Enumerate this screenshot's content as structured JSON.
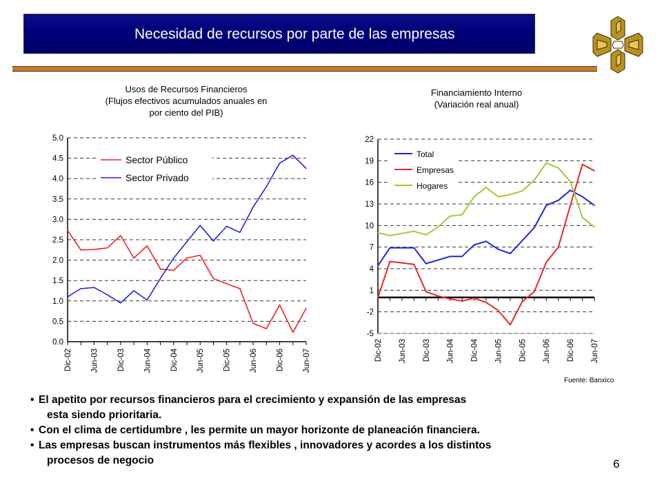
{
  "slide": {
    "title": "Necesidad de recursos  por parte de las empresas",
    "page_number": "6",
    "source": "Fuente: Banxico",
    "colors": {
      "title_bg": "#00007a",
      "accent_bar": "#cc7a29",
      "logo": "#b8911e"
    },
    "bullets": [
      {
        "line1": "El apetito por recursos financieros para el crecimiento y expansión de las empresas",
        "line2": "esta siendo  prioritaria."
      },
      {
        "line1": "Con el clima de certidumbre , les permite un mayor horizonte de planeación financiera.",
        "line2": ""
      },
      {
        "line1": "Las empresas buscan instrumentos más flexibles , innovadores y acordes a los distintos",
        "line2": "procesos de negocio"
      }
    ]
  },
  "chart_data": [
    {
      "type": "line",
      "title_lines": [
        "Usos de Recursos Financieros",
        "(Flujos efectivos acumulados anuales en",
        "por ciento del PIB)"
      ],
      "x_tick_labels": [
        "Dic-02",
        "Jun-03",
        "Dic-03",
        "Jun-04",
        "Dic-04",
        "Jun-05",
        "Dic-05",
        "Jun-06",
        "Dic-06",
        "Jun-07"
      ],
      "y_tick_labels": [
        "0.0",
        "0.5",
        "1.0",
        "1.5",
        "2.0",
        "2.5",
        "3.0",
        "3.5",
        "4.0",
        "4.5",
        "5.0"
      ],
      "ylim": [
        0,
        5
      ],
      "grid": "horizontal dashed",
      "legend_position": "top-left",
      "x": [
        0,
        0.5,
        1,
        1.5,
        2,
        2.5,
        3,
        3.5,
        4,
        4.5,
        5,
        5.5,
        6,
        6.5,
        7,
        7.5,
        8,
        8.5,
        9
      ],
      "series": [
        {
          "name": "Sector Público",
          "color": "#ee2222",
          "values": [
            2.73,
            2.25,
            2.26,
            2.3,
            2.6,
            2.05,
            2.35,
            1.78,
            1.75,
            2.05,
            2.12,
            1.55,
            1.42,
            1.3,
            0.45,
            0.32,
            0.9,
            0.23,
            0.82
          ]
        },
        {
          "name": "Sector Privado",
          "color": "#2222dd",
          "values": [
            1.1,
            1.3,
            1.33,
            1.15,
            0.95,
            1.25,
            1.02,
            1.55,
            2.05,
            2.45,
            2.85,
            2.47,
            2.83,
            2.68,
            3.3,
            3.8,
            4.38,
            4.57,
            4.25
          ]
        }
      ]
    },
    {
      "type": "line",
      "title_lines": [
        "Financiamiento Interno",
        "(Variación real anual)"
      ],
      "x_tick_labels": [
        "Dic-02",
        "Jun-03",
        "Dic-03",
        "Jun-04",
        "Dic-04",
        "Jun-05",
        "Dic-05",
        "Jun-06",
        "Dic-06",
        "Jun-07"
      ],
      "y_tick_labels": [
        "-5",
        "-2",
        "1",
        "4",
        "7",
        "10",
        "13",
        "16",
        "19",
        "22"
      ],
      "ylim": [
        -5,
        22
      ],
      "grid": "horizontal dashed",
      "legend_position": "top-left",
      "x": [
        0,
        0.5,
        1,
        1.5,
        2,
        2.5,
        3,
        3.5,
        4,
        4.5,
        5,
        5.5,
        6,
        6.5,
        7,
        7.5,
        8,
        8.5,
        9
      ],
      "series": [
        {
          "name": "Total",
          "color": "#2222dd",
          "values": [
            4.4,
            6.9,
            6.9,
            6.9,
            4.7,
            5.2,
            5.7,
            5.7,
            7.3,
            7.8,
            6.7,
            6.1,
            7.9,
            9.7,
            12.8,
            13.5,
            14.9,
            14.0,
            12.8
          ]
        },
        {
          "name": "Empresas",
          "color": "#ee2222",
          "values": [
            0.0,
            5.0,
            4.8,
            4.6,
            0.8,
            0.2,
            -0.2,
            -0.5,
            -0.1,
            -0.7,
            -1.8,
            -3.8,
            -0.6,
            0.8,
            4.9,
            7.0,
            12.8,
            18.5,
            17.6
          ]
        },
        {
          "name": "Hogares",
          "color": "#99cc33",
          "values": [
            9.0,
            8.6,
            8.9,
            9.2,
            8.7,
            9.8,
            11.3,
            11.5,
            14.0,
            15.3,
            14.0,
            14.3,
            14.8,
            16.3,
            18.7,
            18.0,
            16.1,
            11.1,
            9.8
          ]
        }
      ]
    }
  ]
}
